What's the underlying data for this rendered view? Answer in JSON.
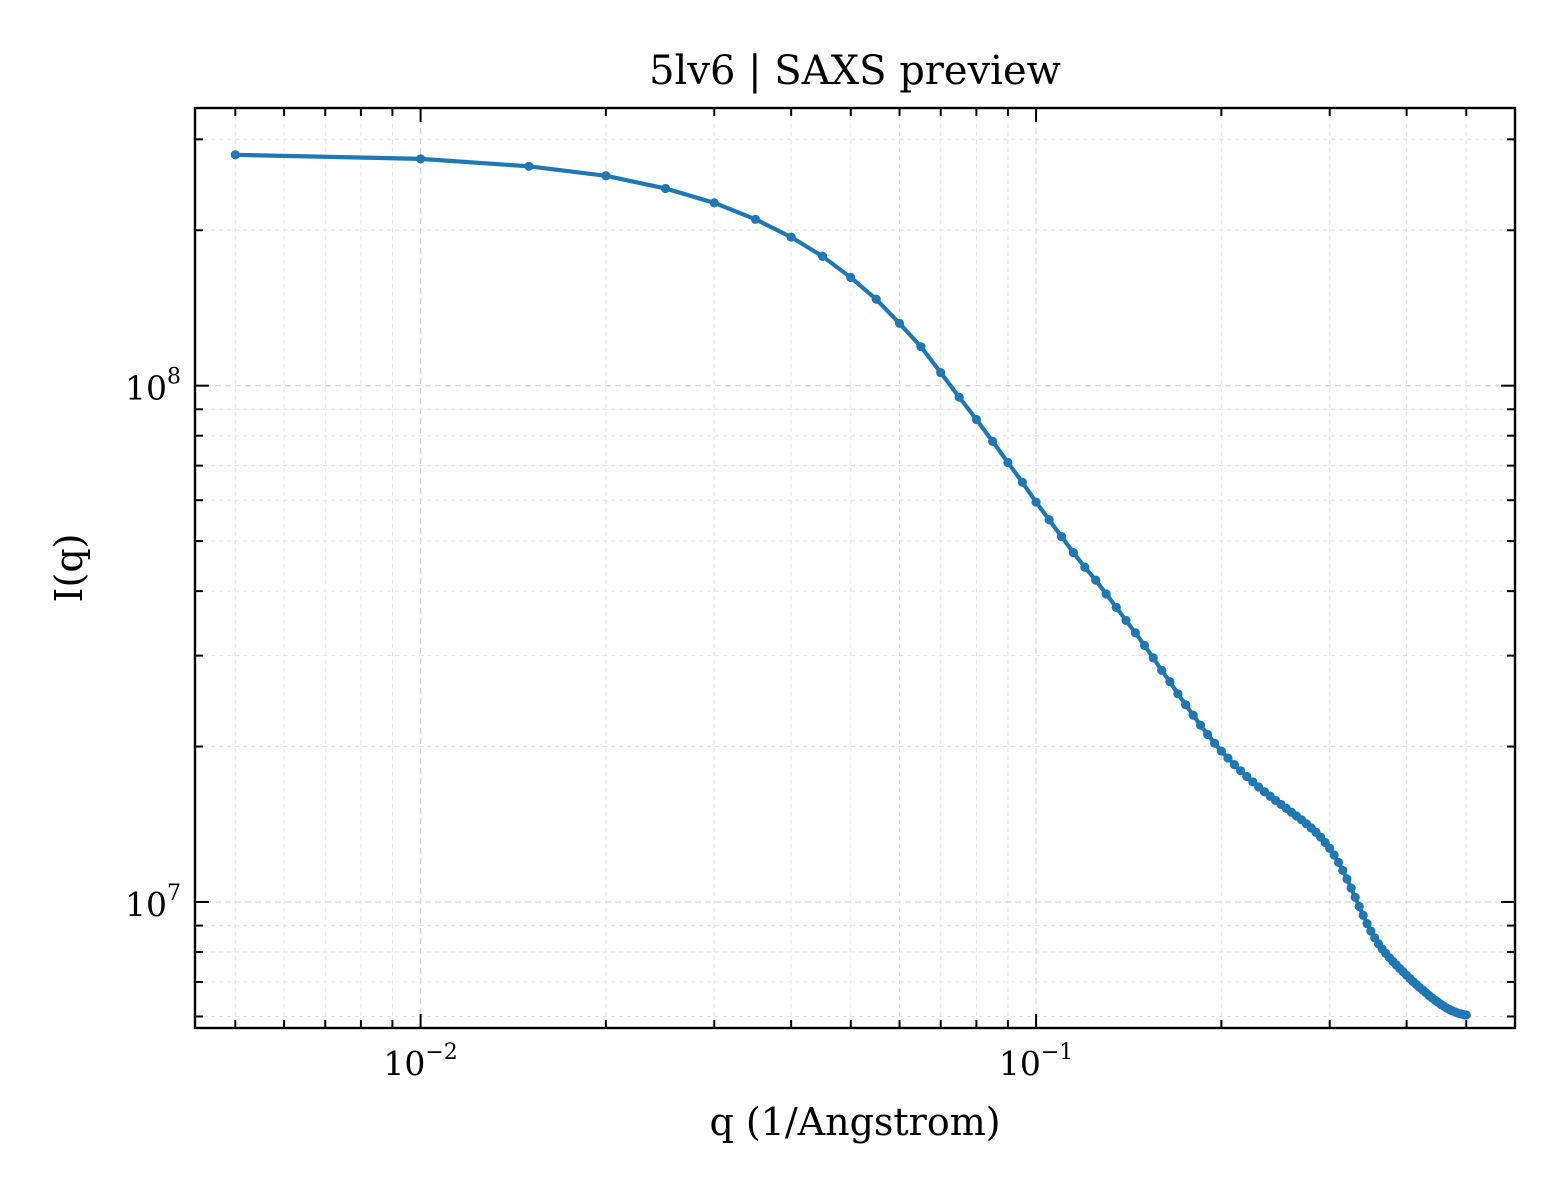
{
  "chart_data": {
    "type": "line",
    "title": "5lv6 | SAXS preview",
    "xlabel": "q (1/Angstrom)",
    "ylabel": "I(q)",
    "xscale": "log",
    "yscale": "log",
    "xlim": [
      0.0043,
      0.6
    ],
    "ylim": [
      5700000,
      345000000
    ],
    "x_major_ticks": [
      {
        "value": 0.01,
        "base": "10",
        "exp": "−2"
      },
      {
        "value": 0.1,
        "base": "10",
        "exp": "−1"
      }
    ],
    "y_major_ticks": [
      {
        "value": 10000000,
        "base": "10",
        "exp": "7"
      },
      {
        "value": 100000000,
        "base": "10",
        "exp": "8"
      }
    ],
    "grid": true,
    "colors": {
      "series": "#1f77b4",
      "frame": "#000000"
    },
    "series": [
      {
        "x": [
          0.005,
          0.01,
          0.015,
          0.02,
          0.025,
          0.03,
          0.035,
          0.04,
          0.045,
          0.05,
          0.055,
          0.06,
          0.065,
          0.07,
          0.075,
          0.08,
          0.085,
          0.09,
          0.095,
          0.1,
          0.105,
          0.11,
          0.115,
          0.12,
          0.125,
          0.13,
          0.135,
          0.14,
          0.145,
          0.15,
          0.155,
          0.16,
          0.165,
          0.17,
          0.175,
          0.18,
          0.185,
          0.19,
          0.195,
          0.2,
          0.205,
          0.21,
          0.215,
          0.22,
          0.225,
          0.23,
          0.235,
          0.24,
          0.245,
          0.25,
          0.255,
          0.26,
          0.265,
          0.27,
          0.275,
          0.28,
          0.285,
          0.29,
          0.295,
          0.3,
          0.305,
          0.31,
          0.315,
          0.32,
          0.325,
          0.33,
          0.335,
          0.34,
          0.345,
          0.35,
          0.355,
          0.36,
          0.365,
          0.37,
          0.375,
          0.38,
          0.385,
          0.39,
          0.395,
          0.4,
          0.405,
          0.41,
          0.415,
          0.42,
          0.425,
          0.43,
          0.435,
          0.44,
          0.445,
          0.45,
          0.455,
          0.46,
          0.465,
          0.47,
          0.475,
          0.48,
          0.485,
          0.49,
          0.495,
          0.5
        ],
        "y": [
          280000000,
          275000000,
          266000000,
          255000000,
          241000000,
          226000000,
          210000000,
          194000000,
          178000000,
          162000000,
          147000000,
          132000000,
          119000000,
          106000000,
          95000000,
          86000000,
          78000000,
          71000000,
          65000000,
          59500000,
          55000000,
          51000000,
          47500000,
          44500000,
          42000000,
          39500000,
          37200000,
          35100000,
          33200000,
          31400000,
          29700000,
          28100000,
          26700000,
          25300000,
          24100000,
          23000000,
          22000000,
          21100000,
          20300000,
          19600000,
          19000000,
          18450000,
          17950000,
          17500000,
          17080000,
          16700000,
          16350000,
          16030000,
          15730000,
          15450000,
          15180000,
          14920000,
          14670000,
          14420000,
          14170000,
          13910000,
          13640000,
          13350000,
          13040000,
          12700000,
          12330000,
          11930000,
          11510000,
          11080000,
          10640000,
          10210000,
          9800000,
          9420000,
          9080000,
          8780000,
          8520000,
          8300000,
          8110000,
          7950000,
          7800000,
          7670000,
          7550000,
          7430000,
          7320000,
          7210000,
          7110000,
          7010000,
          6920000,
          6830000,
          6750000,
          6670000,
          6590000,
          6520000,
          6450000,
          6390000,
          6330000,
          6280000,
          6230000,
          6190000,
          6150000,
          6120000,
          6090000,
          6070000,
          6050000,
          6040000
        ]
      }
    ]
  }
}
